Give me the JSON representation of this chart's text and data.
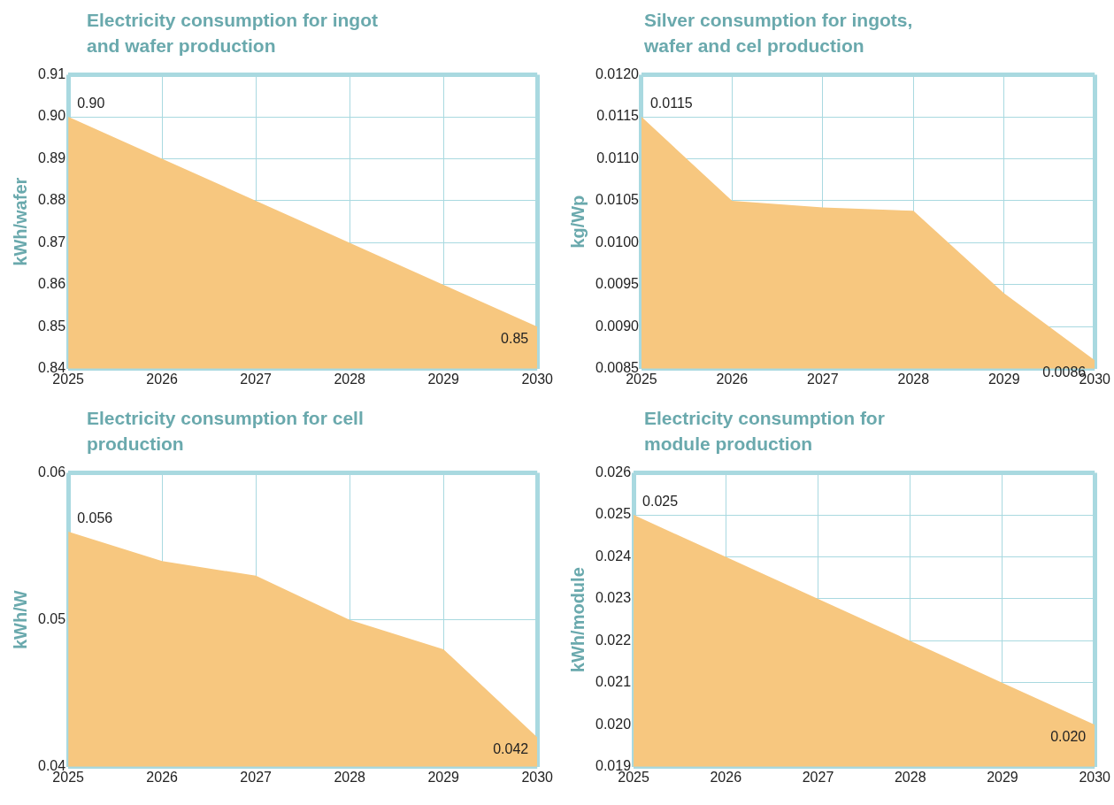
{
  "chart_data": [
    {
      "type": "area",
      "title": "Electricity consumption for ingot and wafer production",
      "ylabel": "kWh/wafer",
      "x": [
        2025,
        2026,
        2027,
        2028,
        2029,
        2030
      ],
      "series": [
        {
          "color": "#f7c77f",
          "values": [
            0.9,
            0.89,
            0.88,
            0.87,
            0.86,
            0.85
          ],
          "value_labels": [
            "0.90",
            null,
            null,
            null,
            null,
            "0.85"
          ]
        }
      ],
      "xlim": [
        2025,
        2030
      ],
      "xticks": [
        2025,
        2026,
        2027,
        2028,
        2029,
        2030
      ],
      "ylim": [
        0.84,
        0.91
      ],
      "yticks": [
        0.84,
        0.85,
        0.86,
        0.87,
        0.88,
        0.89,
        {
          "value": 0.9,
          "label": "0.90"
        },
        0.91
      ],
      "grid": true
    },
    {
      "type": "area",
      "title": "Silver consumption for ingots, wafer and cel production",
      "ylabel": "kg/Wp",
      "x": [
        2025,
        2026,
        2027,
        2028,
        2029,
        2030
      ],
      "series": [
        {
          "color": "#f7c77f",
          "values": [
            0.0115,
            0.0105,
            0.01042,
            0.01038,
            0.0094,
            0.0086
          ],
          "value_labels": [
            "0.0115",
            null,
            null,
            null,
            null,
            "0.0086"
          ]
        }
      ],
      "xlim": [
        2025,
        2030
      ],
      "xticks": [
        2025,
        2026,
        2027,
        2028,
        2029,
        2030
      ],
      "ylim": [
        0.0085,
        0.012
      ],
      "yticks": [
        0.0085,
        {
          "value": 0.009,
          "label": "0.0090"
        },
        0.0095,
        {
          "value": 0.01,
          "label": "0.0100"
        },
        0.0105,
        {
          "value": 0.011,
          "label": "0.0110"
        },
        0.0115,
        {
          "value": 0.012,
          "label": "0.0120"
        }
      ],
      "grid": true
    },
    {
      "type": "area",
      "title": "Electricity consumption for cell production",
      "ylabel": "kWh/W",
      "x": [
        2025,
        2026,
        2027,
        2028,
        2029,
        2030
      ],
      "series": [
        {
          "color": "#f7c77f",
          "values": [
            0.056,
            0.054,
            0.053,
            0.05,
            0.048,
            0.042
          ],
          "value_labels": [
            "0.056",
            null,
            null,
            null,
            null,
            "0.042"
          ]
        }
      ],
      "xlim": [
        2025,
        2030
      ],
      "xticks": [
        2025,
        2026,
        2027,
        2028,
        2029,
        2030
      ],
      "ylim": [
        0.04,
        0.06
      ],
      "yticks": [
        0.04,
        0.05,
        0.06
      ],
      "grid": true
    },
    {
      "type": "area",
      "title": "Electricity consumption for module production",
      "ylabel": "kWh/module",
      "x": [
        2025,
        2026,
        2027,
        2028,
        2029,
        2030
      ],
      "series": [
        {
          "color": "#f7c77f",
          "values": [
            0.025,
            0.024,
            0.023,
            0.022,
            0.021,
            0.02
          ],
          "value_labels": [
            "0.025",
            null,
            null,
            null,
            null,
            "0.020"
          ]
        }
      ],
      "xlim": [
        2025,
        2030
      ],
      "xticks": [
        2025,
        2026,
        2027,
        2028,
        2029,
        2030
      ],
      "ylim": [
        0.019,
        0.026
      ],
      "yticks": [
        0.019,
        {
          "value": 0.02,
          "label": "0.020"
        },
        0.021,
        0.022,
        0.023,
        0.024,
        0.025,
        0.026
      ],
      "grid": true
    }
  ]
}
